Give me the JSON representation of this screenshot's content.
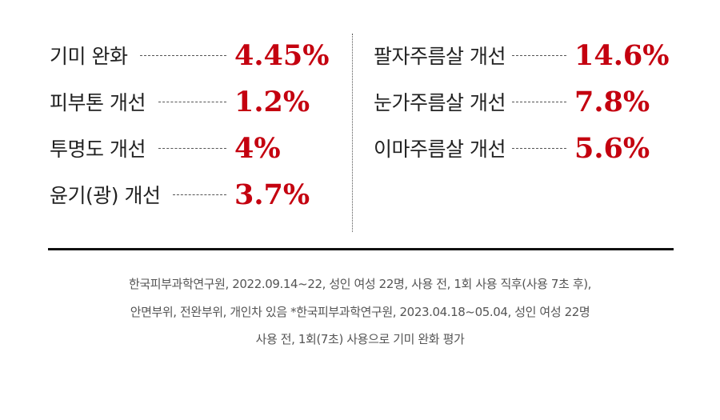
{
  "results": {
    "left": [
      {
        "label": "기미 완화",
        "value": "4.45%"
      },
      {
        "label": "피부톤 개선",
        "value": "1.2%"
      },
      {
        "label": "투명도 개선",
        "value": "4%"
      },
      {
        "label": "윤기(광) 개선",
        "value": "3.7%"
      }
    ],
    "right": [
      {
        "label": "팔자주름살 개선",
        "value": "14.6%"
      },
      {
        "label": "눈가주름살 개선",
        "value": "7.8%"
      },
      {
        "label": "이마주름살 개선",
        "value": "5.6%"
      }
    ]
  },
  "footnote": [
    "한국피부과학연구원, 2022.09.14~22, 성인 여성 22명, 사용 전, 1회 사용 직후(사용 7초 후),",
    "안면부위, 전완부위, 개인차 있음 *한국피부과학연구원, 2023.04.18~05.04, 성인 여성 22명",
    "사용 전, 1회(7초) 사용으로 기미 완화 평가"
  ]
}
